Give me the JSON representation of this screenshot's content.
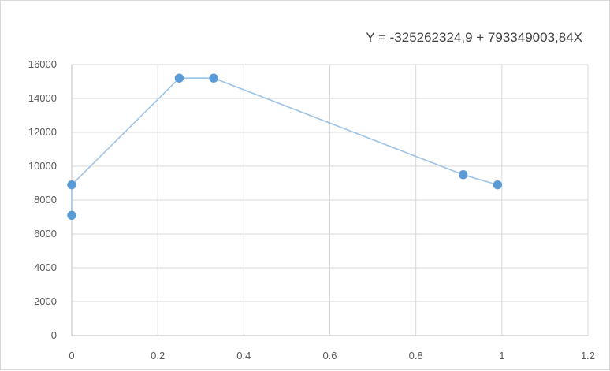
{
  "chart_data": {
    "type": "scatter",
    "title": "",
    "xlabel": "",
    "ylabel": "",
    "annotation": "Y = -325262324,9 + 793349003,84X",
    "xlim": [
      0,
      1.2
    ],
    "ylim": [
      0,
      16000
    ],
    "x_ticks": [
      0,
      0.2,
      0.4,
      0.6,
      0.8,
      1,
      1.2
    ],
    "x_tick_labels": [
      "0",
      "0.2",
      "0.4",
      "0.6",
      "0.8",
      "1",
      "1.2"
    ],
    "y_ticks": [
      0,
      2000,
      4000,
      6000,
      8000,
      10000,
      12000,
      14000,
      16000
    ],
    "y_tick_labels": [
      "0",
      "2000",
      "4000",
      "6000",
      "8000",
      "10000",
      "12000",
      "14000",
      "16000"
    ],
    "grid": true,
    "legend": "none",
    "series": [
      {
        "x": [
          0,
          0,
          0.25,
          0.33,
          0.91,
          0.99
        ],
        "y": [
          7100,
          8900,
          15200,
          15200,
          9500,
          8900
        ],
        "color": "#5b9bd5",
        "line_color": "#9dc3e6"
      }
    ]
  }
}
